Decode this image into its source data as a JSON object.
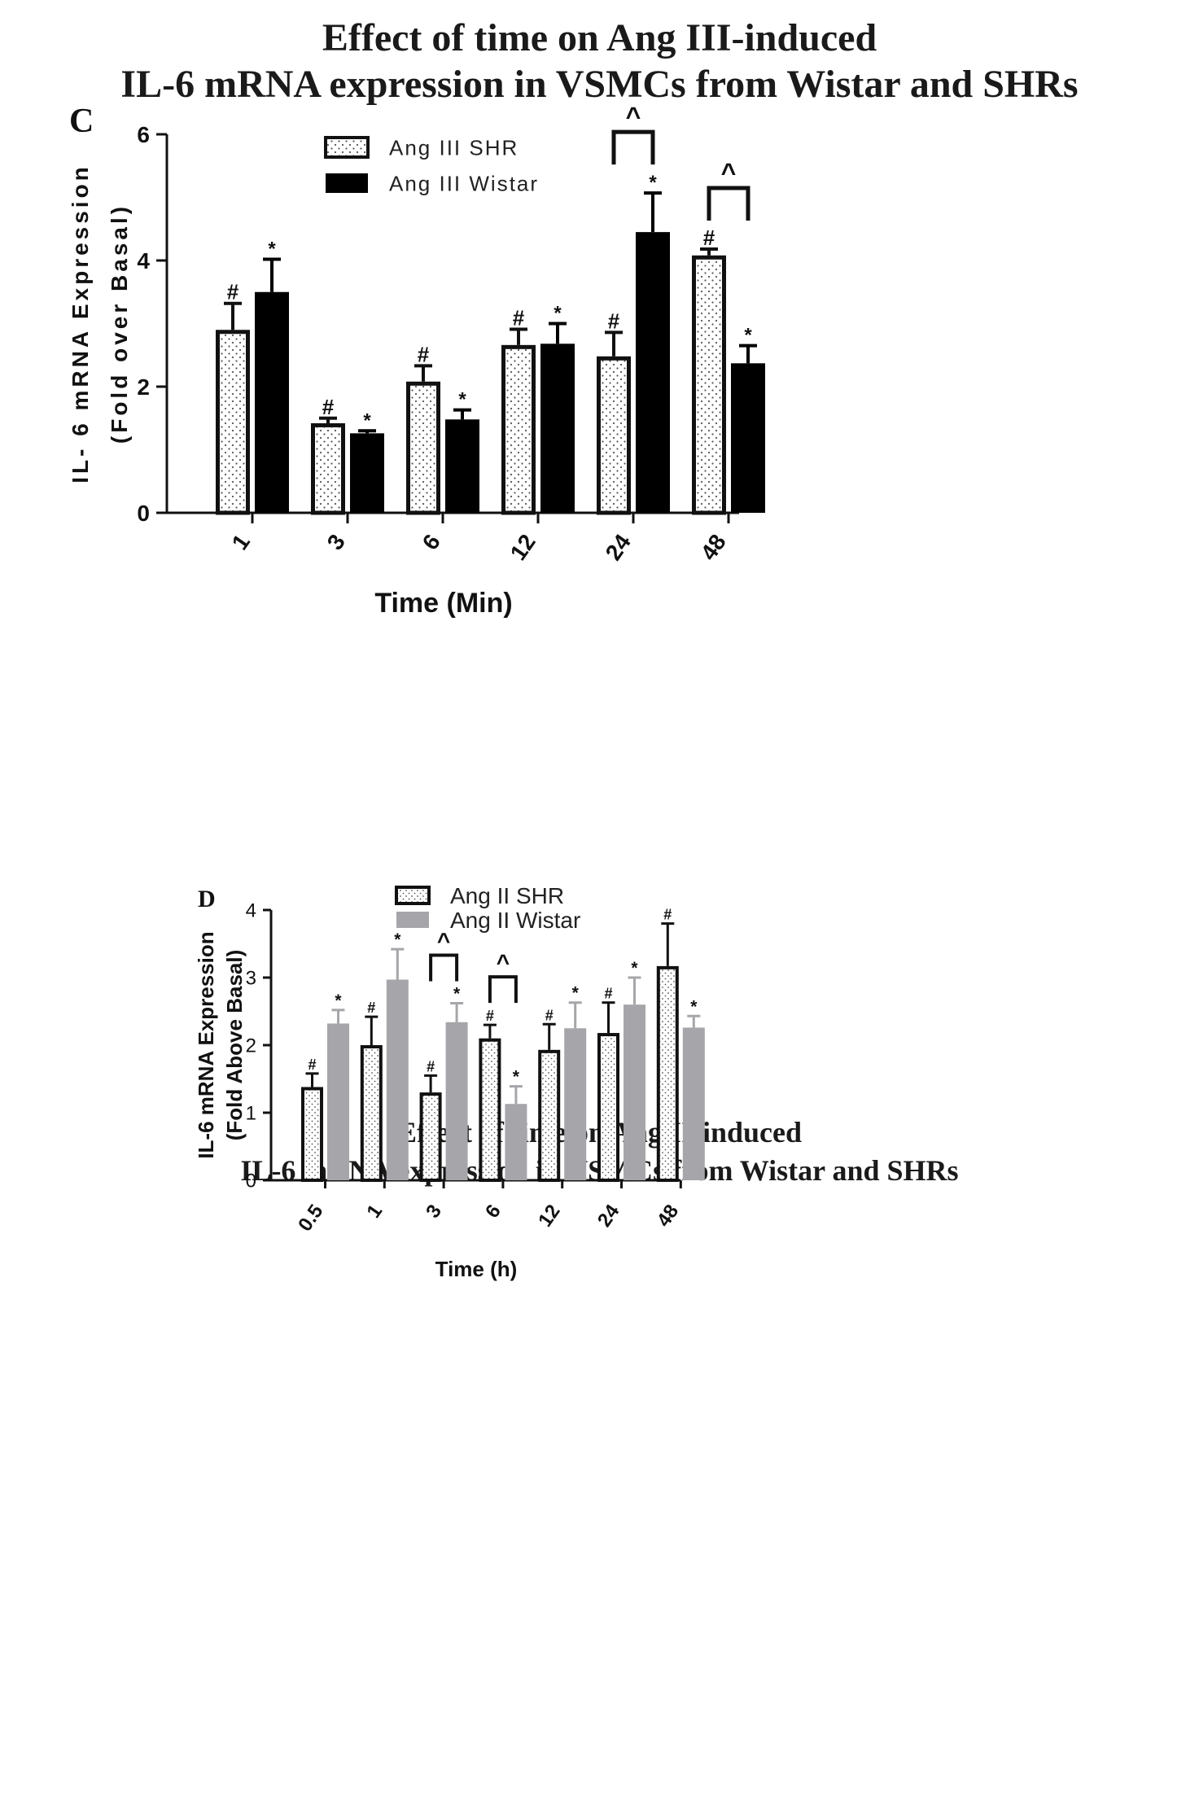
{
  "chart_data": [
    {
      "panel": "C",
      "type": "bar",
      "title_lines": [
        "Effect of time on Ang III-induced",
        "IL-6 mRNA expression in VSMCs from Wistar and SHRs"
      ],
      "ylabel_lines": [
        "IL- 6 mRNA Expression",
        "(Fold over Basal)"
      ],
      "xlabel": "Time (Min)",
      "ylim": [
        0,
        6
      ],
      "yticks": [
        "0",
        "2",
        "4",
        "6"
      ],
      "categories": [
        "1",
        "3",
        "6",
        "12",
        "24",
        "48"
      ],
      "series": [
        {
          "name": "Ang III SHR",
          "fill": "dotted",
          "color": "#111111",
          "values": [
            2.9,
            1.42,
            2.08,
            2.66,
            2.48,
            4.08
          ],
          "errors": [
            0.42,
            0.08,
            0.25,
            0.25,
            0.38,
            0.1
          ],
          "marks": [
            "#",
            "#",
            "#",
            "#",
            "#",
            "#"
          ]
        },
        {
          "name": "Ang III Wistar",
          "fill": "solid",
          "color": "#000000",
          "values": [
            3.5,
            1.26,
            1.48,
            2.68,
            4.45,
            2.37
          ],
          "errors": [
            0.52,
            0.04,
            0.15,
            0.32,
            0.62,
            0.28
          ],
          "marks": [
            "*",
            "*",
            "*",
            "*",
            "*",
            "*"
          ]
        }
      ],
      "brackets": [
        {
          "category": "24",
          "label": "^"
        },
        {
          "category": "48",
          "label": "^"
        }
      ]
    },
    {
      "panel": "D",
      "type": "bar",
      "title_lines": [
        "Effect of time on Ang II-induced",
        "IL-6 mRNA expression in VSMCs from Wistar and SHRs"
      ],
      "ylabel_lines": [
        "IL-6 mRNA Expression",
        "(Fold Above Basal)"
      ],
      "xlabel": "Time (h)",
      "ylim": [
        0,
        4
      ],
      "yticks": [
        "0",
        "1",
        "2",
        "3",
        "4"
      ],
      "categories": [
        "0.5",
        "1",
        "3",
        "6",
        "12",
        "24",
        "48"
      ],
      "series": [
        {
          "name": "Ang II SHR",
          "fill": "dotted",
          "color": "#111111",
          "values": [
            1.38,
            2.0,
            1.3,
            2.1,
            1.93,
            2.18,
            3.17
          ],
          "errors": [
            0.2,
            0.42,
            0.25,
            0.2,
            0.38,
            0.45,
            0.63
          ],
          "marks": [
            "#",
            "#",
            "#",
            "#",
            "#",
            "#",
            "#"
          ]
        },
        {
          "name": "Ang  II Wistar",
          "fill": "solid",
          "color": "#a6a6aa",
          "values": [
            2.32,
            2.97,
            2.34,
            1.13,
            2.25,
            2.6,
            2.26
          ],
          "errors": [
            0.2,
            0.45,
            0.28,
            0.26,
            0.38,
            0.4,
            0.17
          ],
          "marks": [
            "*",
            "*",
            "*",
            "*",
            "*",
            "*",
            "*"
          ]
        }
      ],
      "brackets": [
        {
          "category": "3",
          "label": "^"
        },
        {
          "category": "6",
          "label": "^"
        }
      ]
    }
  ]
}
